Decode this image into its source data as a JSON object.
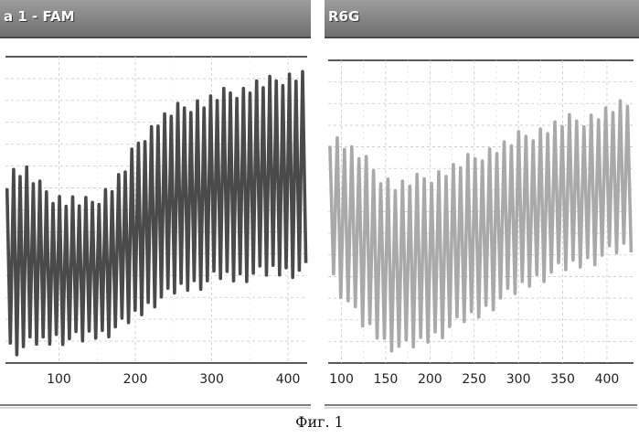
{
  "figure": {
    "caption": "Фиг. 1"
  },
  "panels": [
    {
      "title": "a 1 - FAM"
    },
    {
      "title": "R6G"
    }
  ],
  "chart_data": [
    {
      "type": "line",
      "title": "a 1 - FAM",
      "xlim": [
        30,
        425
      ],
      "ylim": [
        0,
        1
      ],
      "x_ticks": [
        100,
        200,
        300,
        400
      ],
      "grid": true,
      "series_color": "#4a4a4a",
      "series": [
        {
          "x": [
            30,
            40,
            50,
            60,
            70,
            80,
            90,
            100,
            110,
            120,
            130,
            140,
            150,
            160,
            170,
            180,
            190,
            200,
            210,
            220,
            230,
            240,
            250,
            260,
            270,
            280,
            290,
            300,
            310,
            320,
            330,
            340,
            350,
            360,
            370,
            380,
            390,
            400,
            410,
            420
          ],
          "y_high": [
            0.58,
            0.62,
            0.62,
            0.62,
            0.57,
            0.56,
            0.54,
            0.53,
            0.52,
            0.52,
            0.51,
            0.51,
            0.53,
            0.55,
            0.57,
            0.6,
            0.64,
            0.7,
            0.74,
            0.76,
            0.79,
            0.8,
            0.82,
            0.83,
            0.84,
            0.85,
            0.85,
            0.86,
            0.87,
            0.88,
            0.89,
            0.89,
            0.9,
            0.91,
            0.91,
            0.92,
            0.93,
            0.94,
            0.94,
            0.94
          ],
          "y_low": [
            0.05,
            0.03,
            0.03,
            0.04,
            0.05,
            0.05,
            0.06,
            0.07,
            0.06,
            0.06,
            0.06,
            0.07,
            0.08,
            0.08,
            0.1,
            0.1,
            0.12,
            0.14,
            0.16,
            0.18,
            0.2,
            0.2,
            0.22,
            0.23,
            0.24,
            0.25,
            0.25,
            0.26,
            0.27,
            0.27,
            0.27,
            0.27,
            0.28,
            0.28,
            0.28,
            0.29,
            0.29,
            0.29,
            0.29,
            0.29
          ]
        }
      ]
    },
    {
      "type": "line",
      "title": "R6G",
      "xlim": [
        85,
        430
      ],
      "ylim": [
        0,
        1
      ],
      "x_ticks": [
        100,
        150,
        200,
        250,
        300,
        350,
        400
      ],
      "grid": true,
      "series_color": "#a9a9a9",
      "series": [
        {
          "x": [
            90,
            100,
            110,
            120,
            130,
            140,
            150,
            160,
            170,
            180,
            190,
            200,
            210,
            220,
            230,
            240,
            250,
            260,
            270,
            280,
            290,
            300,
            310,
            320,
            330,
            340,
            350,
            360,
            370,
            380,
            390,
            400,
            410,
            420,
            430
          ],
          "y_high": [
            0.74,
            0.73,
            0.7,
            0.68,
            0.65,
            0.62,
            0.6,
            0.58,
            0.58,
            0.59,
            0.6,
            0.61,
            0.62,
            0.63,
            0.64,
            0.66,
            0.67,
            0.69,
            0.7,
            0.71,
            0.72,
            0.74,
            0.75,
            0.76,
            0.77,
            0.78,
            0.79,
            0.8,
            0.8,
            0.81,
            0.82,
            0.83,
            0.84,
            0.85,
            0.85
          ],
          "y_low": [
            0.28,
            0.22,
            0.18,
            0.12,
            0.1,
            0.08,
            0.05,
            0.04,
            0.03,
            0.04,
            0.05,
            0.07,
            0.08,
            0.1,
            0.11,
            0.13,
            0.14,
            0.16,
            0.18,
            0.2,
            0.21,
            0.23,
            0.25,
            0.27,
            0.28,
            0.29,
            0.3,
            0.31,
            0.32,
            0.33,
            0.34,
            0.35,
            0.36,
            0.37,
            0.37
          ]
        }
      ]
    }
  ]
}
